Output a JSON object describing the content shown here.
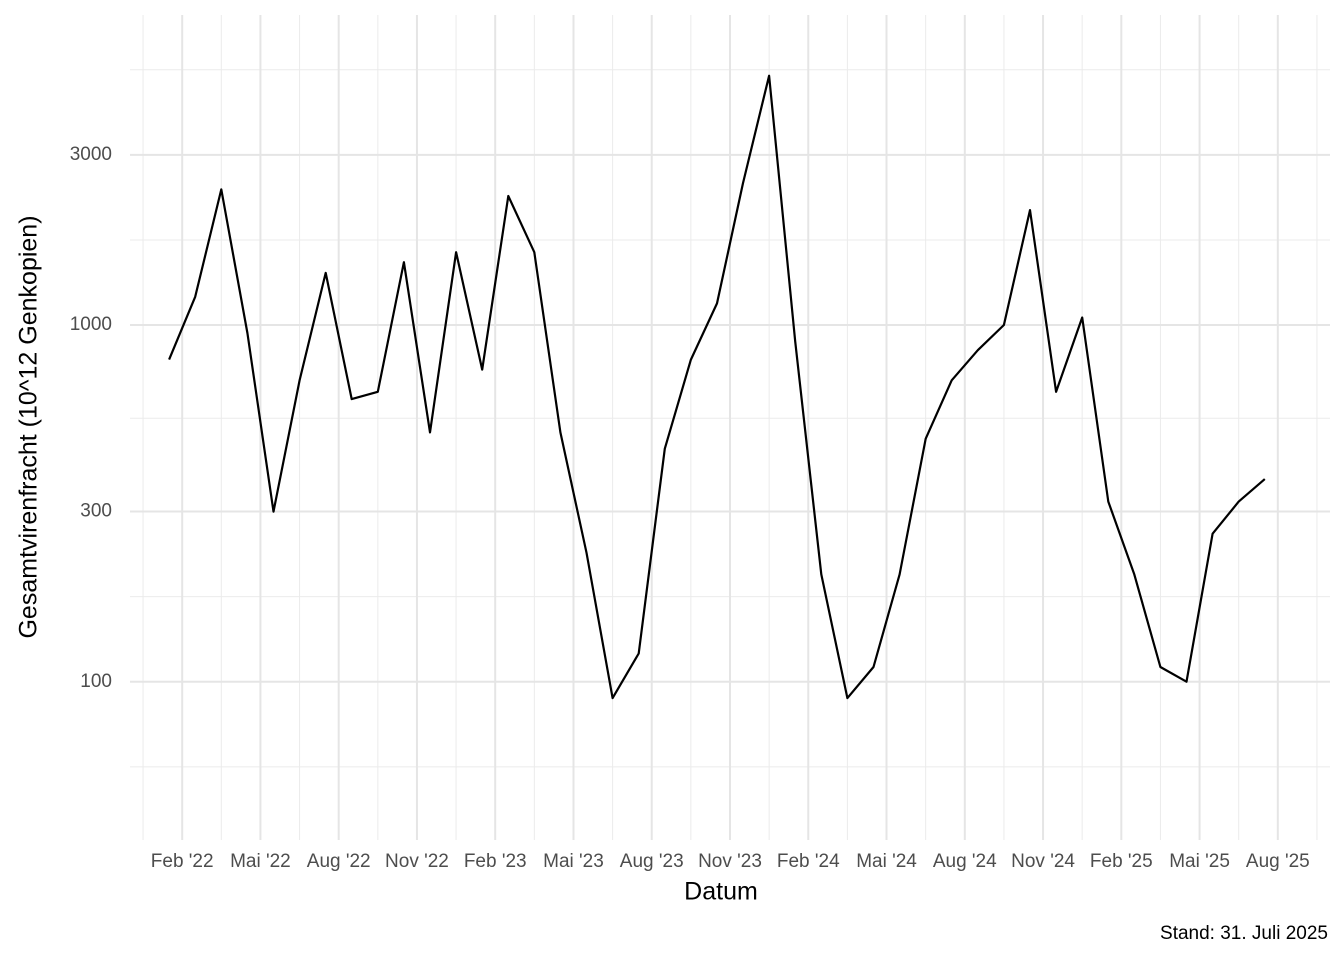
{
  "chart_data": {
    "type": "line",
    "x_label": "Datum",
    "y_label": "Gesamtvirenfracht (10^12 Genkopien)",
    "caption": "Stand: 31. Juli 2025",
    "x": [
      "2022-01",
      "2022-02",
      "2022-03",
      "2022-04",
      "2022-05",
      "2022-06",
      "2022-07",
      "2022-08",
      "2022-09",
      "2022-10",
      "2022-11",
      "2022-12",
      "2023-01",
      "2023-02",
      "2023-03",
      "2023-04",
      "2023-05",
      "2023-06",
      "2023-07",
      "2023-08",
      "2023-09",
      "2023-10",
      "2023-11",
      "2023-12",
      "2024-01",
      "2024-02",
      "2024-03",
      "2024-04",
      "2024-05",
      "2024-06",
      "2024-07",
      "2024-08",
      "2024-09",
      "2024-10",
      "2024-11",
      "2024-12",
      "2025-01",
      "2025-02",
      "2025-03",
      "2025-04",
      "2025-05",
      "2025-06",
      "2025-07"
    ],
    "series": [
      {
        "color": "#000000",
        "values": [
          800,
          1200,
          2400,
          950,
          300,
          700,
          1400,
          620,
          650,
          1500,
          500,
          1600,
          750,
          2300,
          1600,
          500,
          230,
          90,
          120,
          450,
          800,
          1150,
          2500,
          5000,
          900,
          200,
          90,
          110,
          200,
          480,
          700,
          850,
          1000,
          2100,
          650,
          1050,
          320,
          200,
          110,
          100,
          260,
          320,
          370
        ]
      }
    ],
    "xlim": [
      "2021-12",
      "2025-10"
    ],
    "xticks": [
      {
        "value": "2022-02",
        "label": "Feb '22"
      },
      {
        "value": "2022-05",
        "label": "Mai '22"
      },
      {
        "value": "2022-08",
        "label": "Aug '22"
      },
      {
        "value": "2022-11",
        "label": "Nov '22"
      },
      {
        "value": "2023-02",
        "label": "Feb '23"
      },
      {
        "value": "2023-05",
        "label": "Mai '23"
      },
      {
        "value": "2023-08",
        "label": "Aug '23"
      },
      {
        "value": "2023-11",
        "label": "Nov '23"
      },
      {
        "value": "2024-02",
        "label": "Feb '24"
      },
      {
        "value": "2024-05",
        "label": "Mai '24"
      },
      {
        "value": "2024-08",
        "label": "Aug '24"
      },
      {
        "value": "2024-11",
        "label": "Nov '24"
      },
      {
        "value": "2025-02",
        "label": "Feb '25"
      },
      {
        "value": "2025-05",
        "label": "Mai '25"
      },
      {
        "value": "2025-08",
        "label": "Aug '25"
      }
    ],
    "ylim": [
      36,
      7400
    ],
    "yticks": [
      100,
      300,
      1000,
      3000
    ],
    "y_scale": "log",
    "grid": true
  }
}
